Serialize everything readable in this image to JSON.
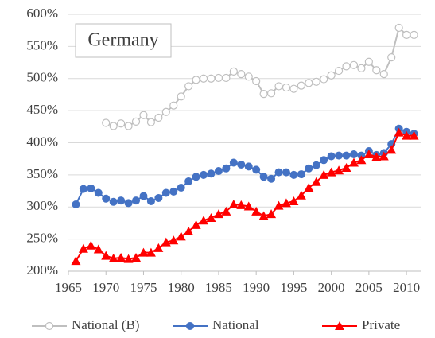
{
  "chart_data": {
    "type": "line",
    "annotation": "Germany",
    "x": [
      1966,
      1967,
      1968,
      1969,
      1970,
      1971,
      1972,
      1973,
      1974,
      1975,
      1976,
      1977,
      1978,
      1979,
      1980,
      1981,
      1982,
      1983,
      1984,
      1985,
      1986,
      1987,
      1988,
      1989,
      1990,
      1991,
      1992,
      1993,
      1994,
      1995,
      1996,
      1997,
      1998,
      1999,
      2000,
      2001,
      2002,
      2003,
      2004,
      2005,
      2006,
      2007,
      2008,
      2009,
      2010,
      2011
    ],
    "series": [
      {
        "name": "National (B)",
        "color": "#bfbfbf",
        "marker": "open-circle",
        "values": [
          null,
          null,
          null,
          null,
          431,
          426,
          430,
          426,
          433,
          443,
          432,
          439,
          448,
          458,
          472,
          488,
          498,
          500,
          500,
          501,
          501,
          511,
          507,
          503,
          496,
          476,
          477,
          488,
          486,
          484,
          489,
          493,
          495,
          499,
          505,
          512,
          519,
          521,
          516,
          526,
          513,
          507,
          533,
          579,
          568,
          568
        ]
      },
      {
        "name": "National",
        "color": "#4472c4",
        "marker": "circle",
        "values": [
          304,
          328,
          329,
          322,
          313,
          308,
          310,
          306,
          310,
          317,
          309,
          314,
          322,
          324,
          330,
          340,
          347,
          350,
          352,
          356,
          360,
          369,
          366,
          363,
          358,
          347,
          344,
          354,
          354,
          350,
          351,
          360,
          365,
          373,
          379,
          380,
          380,
          382,
          380,
          387,
          381,
          384,
          398,
          422,
          417,
          414
        ]
      },
      {
        "name": "Private",
        "color": "#ff0000",
        "marker": "triangle",
        "values": [
          216,
          235,
          240,
          234,
          224,
          220,
          221,
          219,
          221,
          229,
          229,
          236,
          245,
          248,
          254,
          262,
          272,
          279,
          283,
          289,
          293,
          304,
          303,
          301,
          293,
          286,
          289,
          302,
          306,
          309,
          318,
          330,
          339,
          350,
          354,
          357,
          361,
          369,
          373,
          382,
          378,
          379,
          389,
          416,
          411,
          411
        ]
      }
    ],
    "xlim": [
      1965,
      2012
    ],
    "xticks": [
      1965,
      1970,
      1975,
      1980,
      1985,
      1990,
      1995,
      2000,
      2005,
      2010
    ],
    "ylim": [
      200,
      600
    ],
    "yticks": [
      {
        "value": 200,
        "label": "200%"
      },
      {
        "value": 250,
        "label": "250%"
      },
      {
        "value": 300,
        "label": "300%"
      },
      {
        "value": 350,
        "label": "350%"
      },
      {
        "value": 400,
        "label": "400%"
      },
      {
        "value": 450,
        "label": "450%"
      },
      {
        "value": 500,
        "label": "500%"
      },
      {
        "value": 550,
        "label": "550%"
      },
      {
        "value": 600,
        "label": "600%"
      }
    ],
    "grid": true,
    "legend": "bottom"
  }
}
